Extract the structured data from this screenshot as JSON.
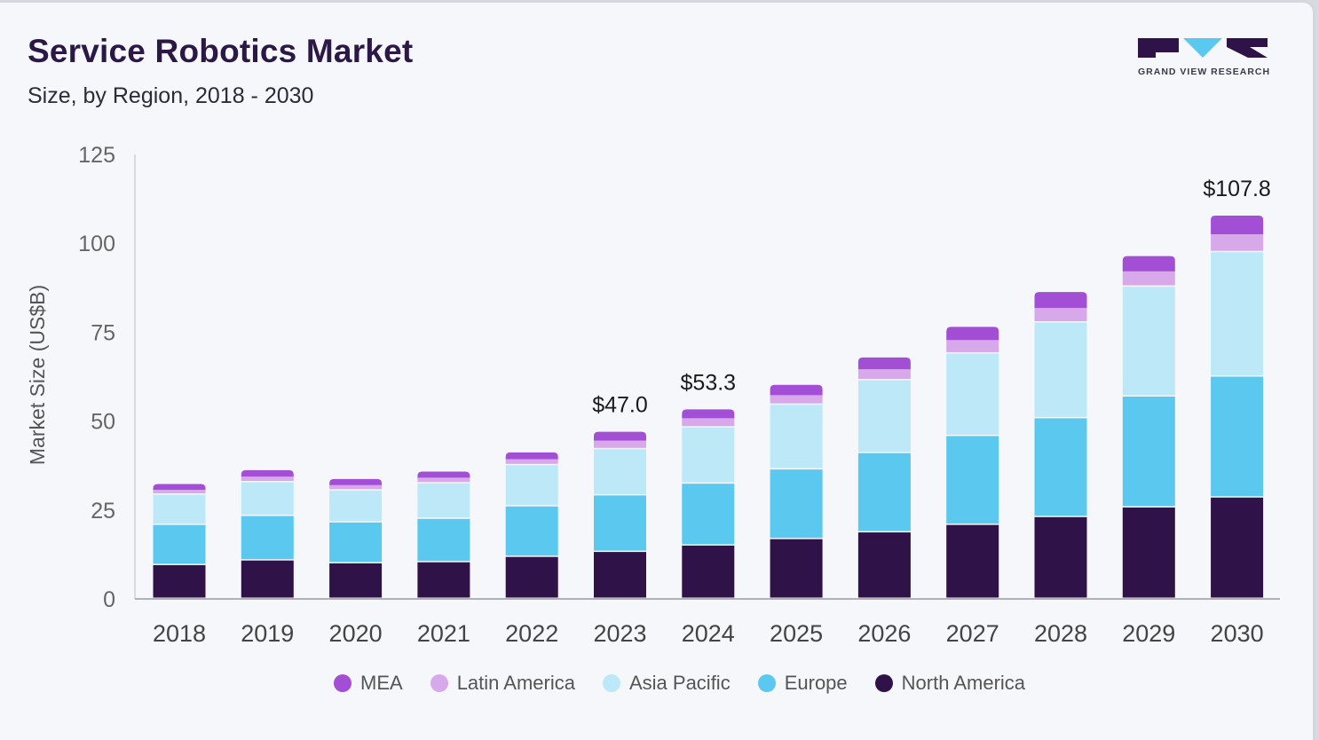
{
  "header": {
    "title": "Service Robotics Market",
    "subtitle": "Size, by Region, 2018 - 2030"
  },
  "logo": {
    "text": "GRAND VIEW RESEARCH"
  },
  "colors": {
    "background": "#f6f7fb",
    "title": "#2b1846",
    "North America": "#2e1248",
    "Europe": "#5bc8f0",
    "Asia Pacific": "#bde8f8",
    "Latin America": "#d7a8ea",
    "MEA": "#a24fd6"
  },
  "chart_data": {
    "type": "bar",
    "stacked": true,
    "title": "Service Robotics Market",
    "subtitle": "Size, by Region, 2018 - 2030",
    "xlabel": "",
    "ylabel": "Market Size (US$B)",
    "ylim": [
      0,
      125
    ],
    "yticks": [
      0,
      25,
      50,
      75,
      100,
      125
    ],
    "categories": [
      "2018",
      "2019",
      "2020",
      "2021",
      "2022",
      "2023",
      "2024",
      "2025",
      "2026",
      "2027",
      "2028",
      "2029",
      "2030"
    ],
    "series": [
      {
        "name": "North America",
        "values": [
          9.5,
          10.8,
          10.0,
          10.3,
          11.8,
          13.2,
          15.0,
          16.8,
          18.7,
          20.8,
          23.0,
          25.7,
          28.5
        ]
      },
      {
        "name": "Europe",
        "values": [
          11.3,
          12.5,
          11.5,
          12.2,
          14.2,
          15.9,
          17.4,
          19.6,
          22.3,
          25.0,
          27.8,
          31.2,
          34.0
        ]
      },
      {
        "name": "Asia Pacific",
        "values": [
          8.5,
          9.5,
          9.0,
          10.0,
          11.6,
          13.0,
          15.8,
          18.2,
          20.5,
          23.2,
          26.9,
          30.9,
          35.0
        ]
      },
      {
        "name": "Latin America",
        "values": [
          1.4,
          1.6,
          1.5,
          1.6,
          1.7,
          2.4,
          2.6,
          2.7,
          3.1,
          3.8,
          4.1,
          4.3,
          5.0
        ]
      },
      {
        "name": "MEA",
        "values": [
          1.6,
          1.8,
          1.7,
          1.7,
          1.9,
          2.5,
          2.5,
          2.9,
          3.3,
          3.7,
          4.5,
          4.3,
          5.3
        ]
      }
    ],
    "data_labels": [
      {
        "category": "2023",
        "text": "$47.0",
        "value": 47.0
      },
      {
        "category": "2024",
        "text": "$53.3",
        "value": 53.3
      },
      {
        "category": "2030",
        "text": "$107.8",
        "value": 107.8
      }
    ],
    "legend": {
      "position": "bottom",
      "entries": [
        "MEA",
        "Latin America",
        "Asia Pacific",
        "Europe",
        "North America"
      ]
    }
  }
}
